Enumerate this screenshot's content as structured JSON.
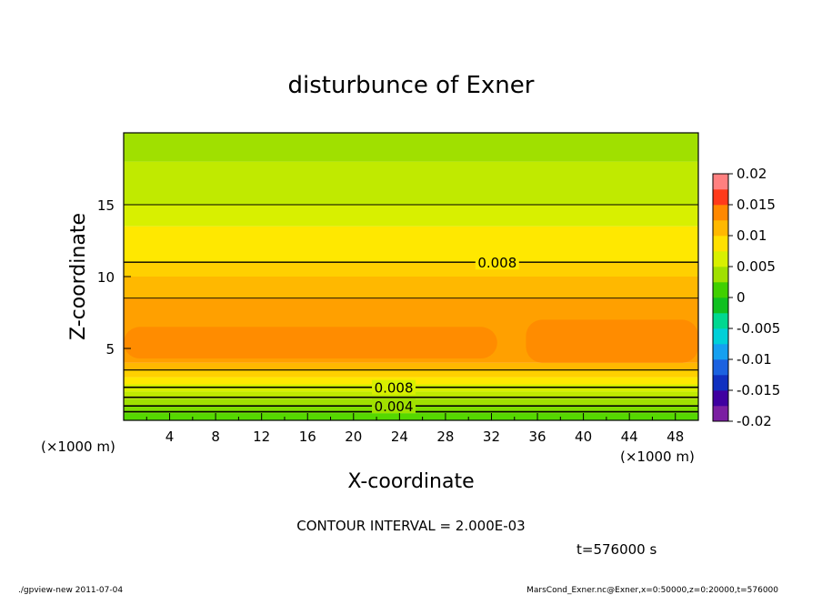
{
  "chart_data": {
    "type": "heatmap",
    "title": "disturbunce of Exner",
    "xlabel": "X-coordinate",
    "ylabel": "Z-coordinate",
    "x_unit": "(×1000 m)",
    "x_unit_left": "(×1000 m)",
    "xlim": [
      0,
      50
    ],
    "ylim": [
      0,
      20
    ],
    "x_ticks": [
      "4",
      "8",
      "12",
      "16",
      "20",
      "24",
      "28",
      "32",
      "36",
      "40",
      "44",
      "48"
    ],
    "y_ticks": [
      "5",
      "10",
      "15"
    ],
    "colorbar": {
      "ticks": [
        "0.02",
        "0.015",
        "0.01",
        "0.005",
        "0",
        "-0.005",
        "-0.01",
        "-0.015",
        "-0.02"
      ],
      "range": [
        -0.02,
        0.02
      ],
      "levels": 16,
      "colors": [
        "#7b1fa2",
        "#3f00a0",
        "#1030c0",
        "#1b62e0",
        "#15a0f0",
        "#00d0d8",
        "#00d890",
        "#10c020",
        "#40d000",
        "#a0e000",
        "#d8f000",
        "#ffe000",
        "#ffb800",
        "#ff8800",
        "#ff3a1a",
        "#ff8080"
      ]
    },
    "bands": [
      {
        "z": 0.0,
        "value": 0.0015,
        "color": "#55d800"
      },
      {
        "z": 0.5,
        "value": 0.0025,
        "color": "#7edc00"
      },
      {
        "z": 1.0,
        "value": 0.0035,
        "color": "#a0e000"
      },
      {
        "z": 1.5,
        "value": 0.0045,
        "color": "#c0ea00"
      },
      {
        "z": 2.0,
        "value": 0.0055,
        "color": "#d8f000"
      },
      {
        "z": 2.5,
        "value": 0.0065,
        "color": "#ffe800"
      },
      {
        "z": 3.0,
        "value": 0.0075,
        "color": "#ffd000"
      },
      {
        "z": 3.5,
        "value": 0.0085,
        "color": "#ffb800"
      },
      {
        "z": 4.0,
        "value": 0.0095,
        "color": "#ffa000"
      },
      {
        "z": 8.5,
        "value": 0.0085,
        "color": "#ffb800"
      },
      {
        "z": 10.0,
        "value": 0.0075,
        "color": "#ffd000"
      },
      {
        "z": 11.0,
        "value": 0.0065,
        "color": "#ffe800"
      },
      {
        "z": 13.5,
        "value": 0.0055,
        "color": "#d8f000"
      },
      {
        "z": 15.0,
        "value": 0.0045,
        "color": "#c0ea00"
      },
      {
        "z": 18.0,
        "value": 0.0035,
        "color": "#a0e000"
      }
    ],
    "contours": [
      {
        "level": 0.002,
        "z": 0.6,
        "width": 1.6
      },
      {
        "level": 0.004,
        "z": 1.0,
        "width": 1.6,
        "label": "0.004",
        "label_x": 23.5
      },
      {
        "level": 0.006,
        "z": 1.6,
        "width": 1.6
      },
      {
        "level": 0.008,
        "z": 2.3,
        "width": 1.6,
        "label": "0.008",
        "label_x": 23.5
      },
      {
        "level": 0.01,
        "z": 3.5,
        "width": 1.2
      },
      {
        "level": 0.01,
        "z": 8.5,
        "width": 0.9
      },
      {
        "level": 0.008,
        "z": 11.0,
        "width": 1.4,
        "label": "0.008",
        "label_x": 32.5
      },
      {
        "level": 0.006,
        "z": 15.0,
        "width": 0.9
      }
    ],
    "cells": [
      {
        "x0": 0,
        "x1": 32.5,
        "z0": 4.3,
        "z1": 6.5,
        "value": 0.0105,
        "color": "#ff8c00"
      },
      {
        "x0": 35,
        "x1": 50,
        "z0": 4.0,
        "z1": 7.0,
        "value": 0.0105,
        "color": "#ff8c00"
      }
    ]
  },
  "annotations": {
    "contour_interval": "CONTOUR INTERVAL = 2.000E-03",
    "time": "t=576000 s",
    "footer_left": "./gpview-new  2011-07-04",
    "footer_right": "MarsCond_Exner.nc@Exner,x=0:50000,z=0:20000,t=576000"
  }
}
